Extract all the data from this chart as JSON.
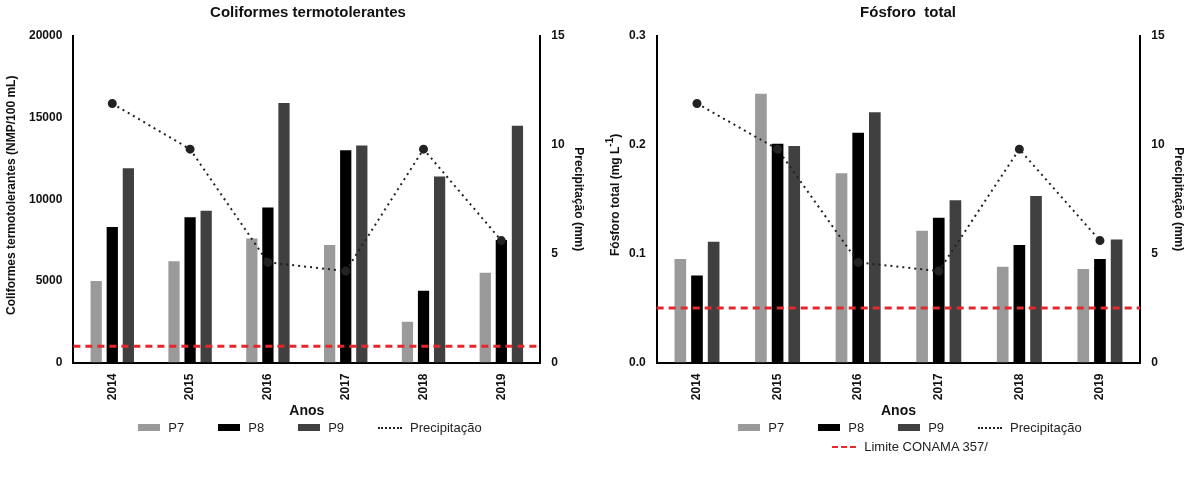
{
  "chart_data": [
    {
      "type": "bar",
      "title": "Coliformes termotolerantes",
      "xlabel": "Anos",
      "ylabel": "Coliformes termotolerantes (NMP/100 mL)",
      "y2label": "Precipitação (mm)",
      "categories": [
        "2014",
        "2015",
        "2016",
        "2017",
        "2018",
        "2019"
      ],
      "series": [
        {
          "name": "P7",
          "color": "#9a9a9a",
          "values": [
            5000,
            6200,
            7600,
            7200,
            2500,
            5500
          ]
        },
        {
          "name": "P8",
          "color": "#000000",
          "values": [
            8300,
            8900,
            9500,
            13000,
            4400,
            7500
          ]
        },
        {
          "name": "P9",
          "color": "#404040",
          "values": [
            11900,
            9300,
            15900,
            13300,
            11400,
            14500
          ]
        },
        {
          "name": "Precipitação",
          "type": "line",
          "axis": "y2",
          "color": "#222222",
          "line_style": "dotted",
          "marker": "circle",
          "values": [
            11.9,
            9.8,
            4.6,
            4.2,
            9.8,
            5.6
          ]
        }
      ],
      "ylim": [
        0,
        20000
      ],
      "yticks": [
        0,
        5000,
        10000,
        15000,
        20000
      ],
      "y2lim": [
        0,
        15
      ],
      "y2ticks": [
        0,
        5,
        10,
        15
      ],
      "ref_lines": [
        {
          "axis": "y",
          "value": 1000,
          "color": "#e8262b",
          "line_style": "dashed"
        }
      ],
      "grid": false,
      "legend": "bottom"
    },
    {
      "type": "bar",
      "title": "Fósforo  total",
      "xlabel": "Anos",
      "ylabel": "Fósforo total (mg L$^{-1}$)",
      "y2label": "Precipitação (mm)",
      "categories": [
        "2014",
        "2015",
        "2016",
        "2017",
        "2018",
        "2019"
      ],
      "series": [
        {
          "name": "P7",
          "color": "#9a9a9a",
          "values": [
            0.095,
            0.247,
            0.174,
            0.121,
            0.088,
            0.086
          ]
        },
        {
          "name": "P8",
          "color": "#000000",
          "values": [
            0.08,
            0.201,
            0.211,
            0.133,
            0.108,
            0.095
          ]
        },
        {
          "name": "P9",
          "color": "#404040",
          "values": [
            0.111,
            0.199,
            0.23,
            0.149,
            0.153,
            0.113
          ]
        },
        {
          "name": "Precipitação",
          "type": "line",
          "axis": "y2",
          "color": "#222222",
          "line_style": "dotted",
          "marker": "circle",
          "values": [
            11.9,
            9.8,
            4.6,
            4.2,
            9.8,
            5.6
          ]
        }
      ],
      "ylim": [
        0,
        0.3
      ],
      "yticks": [
        {
          "value": 0,
          "label": "0.0"
        },
        0.1,
        0.2,
        0.3
      ],
      "y2lim": [
        0,
        15
      ],
      "y2ticks": [
        0,
        5,
        10,
        15
      ],
      "ref_lines": [
        {
          "axis": "y",
          "value": 0.05,
          "label": "Limite CONAMA 357/",
          "color": "#e8262b",
          "line_style": "dashed"
        }
      ],
      "grid": false,
      "legend": "bottom"
    }
  ]
}
